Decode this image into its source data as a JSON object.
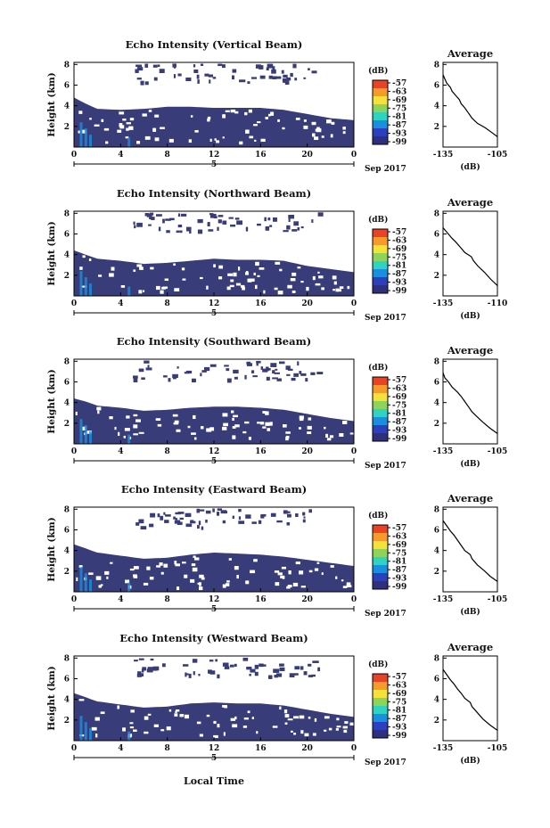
{
  "chart_data": {
    "type": "heatmap",
    "xlabel": "Local Time",
    "date_label": "Sep 2017",
    "day_label": "5",
    "x_ticks": [
      "0",
      "4",
      "8",
      "12",
      "16",
      "20",
      "0"
    ],
    "y_ticks": [
      "2",
      "4",
      "6",
      "8"
    ],
    "y_axis_label": "Height (km)",
    "y_axis_label_bottom": "Height (km)",
    "colorbar_unit": "(dB)",
    "colorbar_ticks": [
      "-57",
      "-63",
      "-69",
      "-75",
      "-81",
      "-87",
      "-93",
      "-99"
    ],
    "colorbar_colors": [
      "#e84227",
      "#f79a2c",
      "#f6e13a",
      "#8fd45a",
      "#2ed3c2",
      "#1a8fe0",
      "#2c3fbd",
      "#2f2f80"
    ],
    "background_color": "#383c78",
    "profile_title": "Average",
    "profile_xlabel": "(dB)",
    "panels": [
      {
        "title": "Echo Intensity (Vertical Beam)",
        "profile_x_ticks": [
          "-135",
          "-105"
        ],
        "profile_xrange": [
          -135,
          -105
        ],
        "top_echo_km_by_hour": [
          [
            0,
            4.8
          ],
          [
            1,
            4.2
          ],
          [
            2,
            3.7
          ],
          [
            4,
            3.6
          ],
          [
            6,
            3.7
          ],
          [
            8,
            3.9
          ],
          [
            10,
            3.9
          ],
          [
            12,
            3.8
          ],
          [
            14,
            3.8
          ],
          [
            16,
            3.8
          ],
          [
            18,
            3.6
          ],
          [
            20,
            3.2
          ],
          [
            22,
            2.8
          ],
          [
            24,
            2.6
          ]
        ],
        "profile": [
          [
            -105,
            1.0
          ],
          [
            -108,
            1.4
          ],
          [
            -112,
            1.9
          ],
          [
            -116,
            2.3
          ],
          [
            -119,
            2.8
          ],
          [
            -121,
            3.3
          ],
          [
            -123,
            3.8
          ],
          [
            -125,
            4.2
          ],
          [
            -126,
            4.6
          ],
          [
            -128,
            5.0
          ],
          [
            -130,
            5.4
          ],
          [
            -131,
            5.8
          ],
          [
            -133,
            6.2
          ],
          [
            -134,
            6.6
          ],
          [
            -135,
            7.0
          ]
        ]
      },
      {
        "title": "Echo Intensity (Northward Beam)",
        "profile_x_ticks": [
          "-135",
          "-110"
        ],
        "profile_xrange": [
          -135,
          -110
        ],
        "top_echo_km_by_hour": [
          [
            0,
            4.4
          ],
          [
            1,
            4.0
          ],
          [
            2,
            3.6
          ],
          [
            4,
            3.4
          ],
          [
            6,
            3.1
          ],
          [
            8,
            3.2
          ],
          [
            10,
            3.4
          ],
          [
            12,
            3.6
          ],
          [
            14,
            3.5
          ],
          [
            16,
            3.5
          ],
          [
            18,
            3.4
          ],
          [
            20,
            2.9
          ],
          [
            22,
            2.6
          ],
          [
            24,
            2.3
          ]
        ],
        "profile": [
          [
            -110,
            1.0
          ],
          [
            -113,
            1.6
          ],
          [
            -116,
            2.3
          ],
          [
            -119,
            2.9
          ],
          [
            -121,
            3.4
          ],
          [
            -122,
            3.8
          ],
          [
            -125,
            4.2
          ],
          [
            -127,
            4.7
          ],
          [
            -129,
            5.2
          ],
          [
            -131,
            5.6
          ],
          [
            -133,
            6.1
          ],
          [
            -135,
            6.6
          ]
        ]
      },
      {
        "title": "Echo Intensity (Southward Beam)",
        "profile_x_ticks": [
          "-135",
          "-105"
        ],
        "profile_xrange": [
          -135,
          -105
        ],
        "top_echo_km_by_hour": [
          [
            0,
            4.4
          ],
          [
            1,
            4.1
          ],
          [
            2,
            3.7
          ],
          [
            4,
            3.5
          ],
          [
            6,
            3.2
          ],
          [
            8,
            3.3
          ],
          [
            10,
            3.5
          ],
          [
            12,
            3.6
          ],
          [
            14,
            3.6
          ],
          [
            16,
            3.5
          ],
          [
            18,
            3.3
          ],
          [
            20,
            2.9
          ],
          [
            22,
            2.5
          ],
          [
            24,
            2.2
          ]
        ],
        "profile": [
          [
            -105,
            1.0
          ],
          [
            -109,
            1.5
          ],
          [
            -113,
            2.1
          ],
          [
            -116,
            2.6
          ],
          [
            -119,
            3.1
          ],
          [
            -121,
            3.6
          ],
          [
            -123,
            4.1
          ],
          [
            -125,
            4.6
          ],
          [
            -127,
            5.0
          ],
          [
            -130,
            5.5
          ],
          [
            -132,
            6.0
          ],
          [
            -134,
            6.4
          ],
          [
            -135,
            6.9
          ]
        ]
      },
      {
        "title": "Echo Intensity (Eastward Beam)",
        "profile_x_ticks": [
          "-135",
          "-105"
        ],
        "profile_xrange": [
          -135,
          -105
        ],
        "top_echo_km_by_hour": [
          [
            0,
            4.6
          ],
          [
            1,
            4.2
          ],
          [
            2,
            3.8
          ],
          [
            4,
            3.5
          ],
          [
            6,
            3.2
          ],
          [
            8,
            3.3
          ],
          [
            10,
            3.6
          ],
          [
            12,
            3.8
          ],
          [
            14,
            3.7
          ],
          [
            16,
            3.6
          ],
          [
            18,
            3.4
          ],
          [
            20,
            3.1
          ],
          [
            22,
            2.8
          ],
          [
            24,
            2.5
          ]
        ],
        "profile": [
          [
            -105,
            1.0
          ],
          [
            -109,
            1.5
          ],
          [
            -112,
            2.0
          ],
          [
            -116,
            2.6
          ],
          [
            -119,
            3.2
          ],
          [
            -120,
            3.6
          ],
          [
            -123,
            4.0
          ],
          [
            -125,
            4.5
          ],
          [
            -127,
            5.0
          ],
          [
            -129,
            5.5
          ],
          [
            -131,
            5.9
          ],
          [
            -133,
            6.4
          ],
          [
            -135,
            6.9
          ]
        ]
      },
      {
        "title": "Echo Intensity (Westward Beam)",
        "profile_x_ticks": [
          "-135",
          "-105"
        ],
        "profile_xrange": [
          -135,
          -105
        ],
        "top_echo_km_by_hour": [
          [
            0,
            4.6
          ],
          [
            1,
            4.2
          ],
          [
            2,
            3.8
          ],
          [
            4,
            3.5
          ],
          [
            6,
            3.2
          ],
          [
            8,
            3.3
          ],
          [
            10,
            3.6
          ],
          [
            12,
            3.7
          ],
          [
            14,
            3.6
          ],
          [
            16,
            3.6
          ],
          [
            18,
            3.4
          ],
          [
            20,
            3.0
          ],
          [
            22,
            2.6
          ],
          [
            24,
            2.3
          ]
        ],
        "profile": [
          [
            -105,
            1.0
          ],
          [
            -109,
            1.5
          ],
          [
            -113,
            2.1
          ],
          [
            -116,
            2.7
          ],
          [
            -119,
            3.3
          ],
          [
            -120,
            3.7
          ],
          [
            -123,
            4.1
          ],
          [
            -125,
            4.6
          ],
          [
            -127,
            5.0
          ],
          [
            -129,
            5.5
          ],
          [
            -131,
            5.9
          ],
          [
            -133,
            6.4
          ],
          [
            -135,
            6.9
          ]
        ]
      }
    ]
  }
}
